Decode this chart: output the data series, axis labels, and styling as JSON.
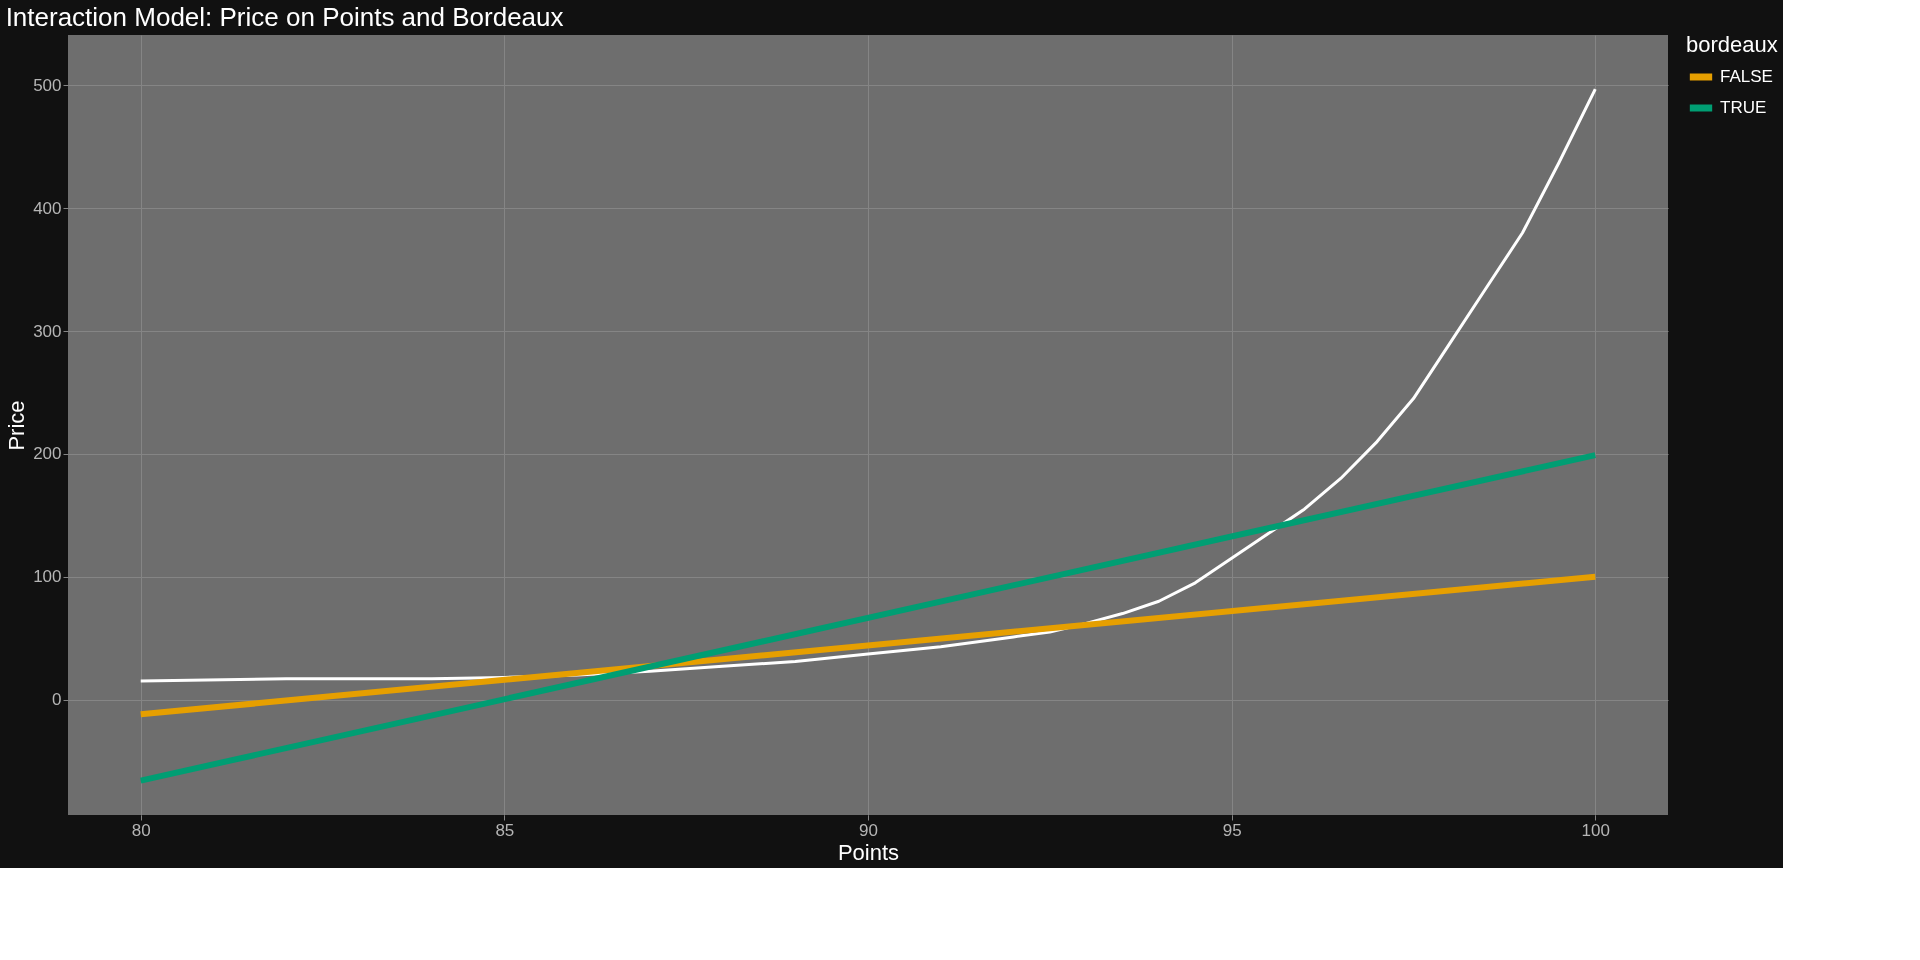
{
  "chart_data": {
    "type": "line",
    "title": "Interaction Model: Price on Points and Bordeaux",
    "xlabel": "Points",
    "ylabel": "Price",
    "legend_title": "bordeaux",
    "legend": "right",
    "grid": true,
    "marker": "none",
    "line_style": "solid",
    "xlim": [
      79,
      101
    ],
    "xticks": [
      80,
      85,
      90,
      95,
      100
    ],
    "ylim": [
      -94,
      541
    ],
    "yticks": [
      0,
      100,
      200,
      300,
      400,
      500
    ],
    "series": [
      {
        "color": "#ffffff",
        "x": [
          80,
          82,
          84,
          85,
          86,
          87,
          87.5,
          88,
          89,
          90,
          91,
          92,
          92.5,
          93,
          93.5,
          94,
          94.5,
          95,
          95.5,
          96,
          96.5,
          97,
          97.5,
          98,
          98.5,
          99,
          99.5,
          100
        ],
        "values": [
          15,
          17,
          17,
          18,
          20,
          23,
          25,
          27,
          31,
          37,
          43,
          51,
          55,
          62,
          70,
          80,
          95,
          115,
          135,
          155,
          180,
          210,
          245,
          290,
          335,
          380,
          437,
          497
        ]
      },
      {
        "name": "FALSE",
        "color": "#e69f00",
        "x": [
          80,
          100
        ],
        "values": [
          -12,
          100
        ]
      },
      {
        "name": "TRUE",
        "color": "#009e73",
        "x": [
          80,
          100
        ],
        "values": [
          -66,
          199
        ]
      }
    ]
  }
}
